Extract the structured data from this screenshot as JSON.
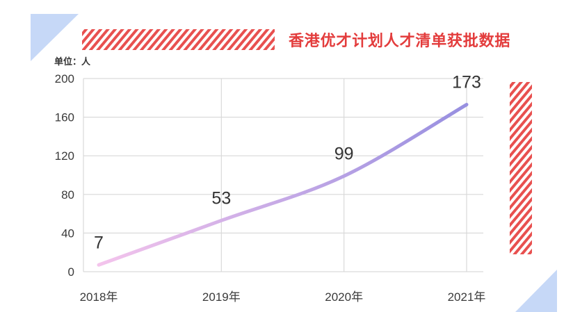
{
  "colors": {
    "title": "#e33c3c",
    "stripes": "#e8504f",
    "corner_triangles": "#c6d8f7",
    "line_start": "#f4c4ec",
    "line_end": "#978fe0",
    "grid": "#d9d9d9",
    "text": "#3a3a3a"
  },
  "chart_data": {
    "type": "line",
    "title": "香港优才计划人才清单获批数据",
    "ylabel": "单位：人",
    "categories": [
      "2018年",
      "2019年",
      "2020年",
      "2021年"
    ],
    "series": [
      {
        "values": [
          7,
          53,
          99,
          173
        ]
      }
    ],
    "data_labels": true,
    "ylim": [
      0,
      200
    ],
    "yticks": [
      0,
      40,
      80,
      120,
      160,
      200
    ],
    "grid": true
  }
}
